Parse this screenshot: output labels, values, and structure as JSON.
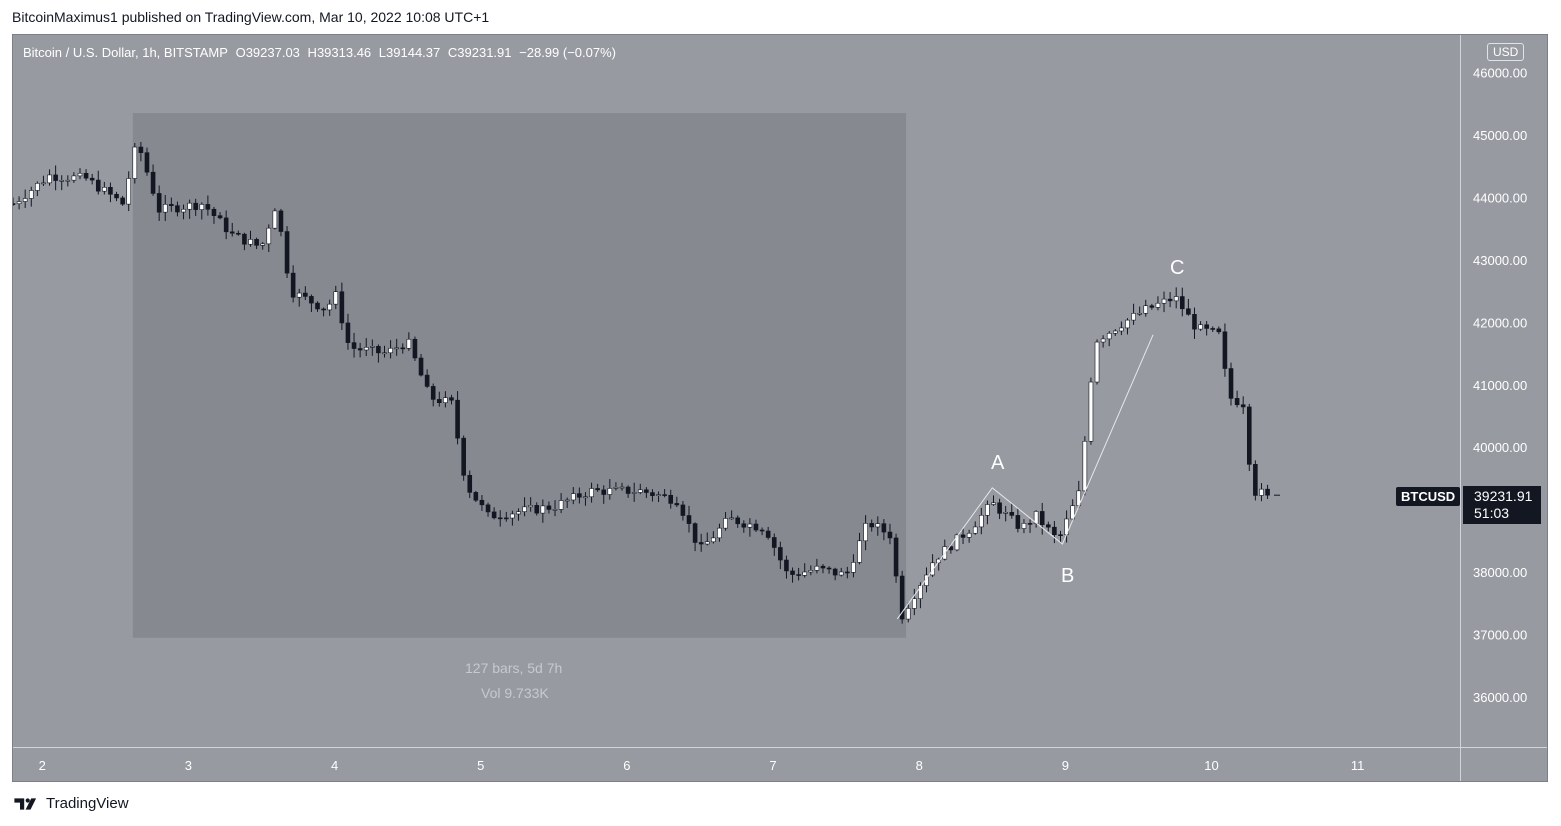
{
  "header": {
    "published": "BitcoinMaximus1 published on TradingView.com, Mar 10, 2022 10:08 UTC+1"
  },
  "symbol": {
    "title": "Bitcoin / U.S. Dollar, 1h, BITSTAMP",
    "o_label": "O",
    "o_value": "39237.03",
    "h_label": "H",
    "h_value": "39313.46",
    "l_label": "L",
    "l_value": "39144.37",
    "c_label": "C",
    "c_value": "39231.91",
    "change": "−28.99 (−0.07%)"
  },
  "currency": "USD",
  "last_price": {
    "ticker": "BTCUSD",
    "price": "39231.91",
    "countdown": "51:03"
  },
  "measure": {
    "bars": "127 bars, 5d 7h",
    "volume": "Vol 9.733K"
  },
  "waves": {
    "a": "A",
    "b": "B",
    "c": "C"
  },
  "footer": {
    "brand": "TradingView"
  },
  "colors": {
    "background": "#979aa1",
    "measure_box": "#868990",
    "up_candle": "#ffffff",
    "down_candle": "#131722",
    "wave_line": "#e6e7ea"
  },
  "chart_data": {
    "type": "candlestick",
    "y_ticks": [
      "46000.00",
      "45000.00",
      "44000.00",
      "43000.00",
      "42000.00",
      "41000.00",
      "40000.00",
      "38000.00",
      "37000.00",
      "36000.00"
    ],
    "y_tick_values": [
      46000,
      45000,
      44000,
      43000,
      42000,
      41000,
      40000,
      38000,
      37000,
      36000
    ],
    "x_ticks": [
      "2",
      "3",
      "4",
      "5",
      "6",
      "7",
      "8",
      "9",
      "10",
      "11"
    ],
    "x_tick_days": [
      2,
      3,
      4,
      5,
      6,
      7,
      8,
      9,
      10,
      11
    ],
    "ylim": [
      35200,
      46600
    ],
    "xlim_days": [
      1.8,
      11.7
    ],
    "measure_range": {
      "start_day": 2.62,
      "end_day": 7.91,
      "low": 36950,
      "high": 45350
    },
    "wave_path": [
      {
        "day": 7.85,
        "price": 37250
      },
      {
        "day": 8.5,
        "price": 39350
      },
      {
        "day": 8.98,
        "price": 38450
      },
      {
        "day": 9.6,
        "price": 41800
      }
    ],
    "wave_labels": [
      {
        "label": "A",
        "day": 8.5,
        "price": 39750
      },
      {
        "label": "B",
        "day": 8.96,
        "price": 37950
      },
      {
        "label": "C",
        "day": 9.71,
        "price": 42800
      }
    ],
    "last_price_value": 39231.91,
    "keypoints": [
      {
        "day": 1.8,
        "price": 43900
      },
      {
        "day": 2.05,
        "price": 44350
      },
      {
        "day": 2.3,
        "price": 44300
      },
      {
        "day": 2.55,
        "price": 43900
      },
      {
        "day": 2.65,
        "price": 44900
      },
      {
        "day": 2.8,
        "price": 43800
      },
      {
        "day": 3.1,
        "price": 43900
      },
      {
        "day": 3.3,
        "price": 43400
      },
      {
        "day": 3.5,
        "price": 43200
      },
      {
        "day": 3.6,
        "price": 43900
      },
      {
        "day": 3.7,
        "price": 42500
      },
      {
        "day": 3.95,
        "price": 42200
      },
      {
        "day": 4.0,
        "price": 42500
      },
      {
        "day": 4.1,
        "price": 41600
      },
      {
        "day": 4.35,
        "price": 41500
      },
      {
        "day": 4.5,
        "price": 41700
      },
      {
        "day": 4.65,
        "price": 40800
      },
      {
        "day": 4.8,
        "price": 40700
      },
      {
        "day": 4.9,
        "price": 39400
      },
      {
        "day": 5.05,
        "price": 38900
      },
      {
        "day": 5.5,
        "price": 39050
      },
      {
        "day": 5.75,
        "price": 39300
      },
      {
        "day": 6.1,
        "price": 39300
      },
      {
        "day": 6.35,
        "price": 39150
      },
      {
        "day": 6.5,
        "price": 38350
      },
      {
        "day": 6.7,
        "price": 38850
      },
      {
        "day": 6.95,
        "price": 38700
      },
      {
        "day": 7.1,
        "price": 37950
      },
      {
        "day": 7.3,
        "price": 38050
      },
      {
        "day": 7.5,
        "price": 37950
      },
      {
        "day": 7.65,
        "price": 38800
      },
      {
        "day": 7.8,
        "price": 38600
      },
      {
        "day": 7.88,
        "price": 37300
      },
      {
        "day": 8.1,
        "price": 38200
      },
      {
        "day": 8.35,
        "price": 38700
      },
      {
        "day": 8.5,
        "price": 39100
      },
      {
        "day": 8.7,
        "price": 38700
      },
      {
        "day": 8.8,
        "price": 38900
      },
      {
        "day": 8.95,
        "price": 38500
      },
      {
        "day": 9.1,
        "price": 39300
      },
      {
        "day": 9.2,
        "price": 41700
      },
      {
        "day": 9.4,
        "price": 42000
      },
      {
        "day": 9.55,
        "price": 42200
      },
      {
        "day": 9.75,
        "price": 42400
      },
      {
        "day": 9.9,
        "price": 41900
      },
      {
        "day": 10.05,
        "price": 41800
      },
      {
        "day": 10.12,
        "price": 40800
      },
      {
        "day": 10.22,
        "price": 40700
      },
      {
        "day": 10.28,
        "price": 39300
      },
      {
        "day": 10.4,
        "price": 39230
      }
    ]
  }
}
